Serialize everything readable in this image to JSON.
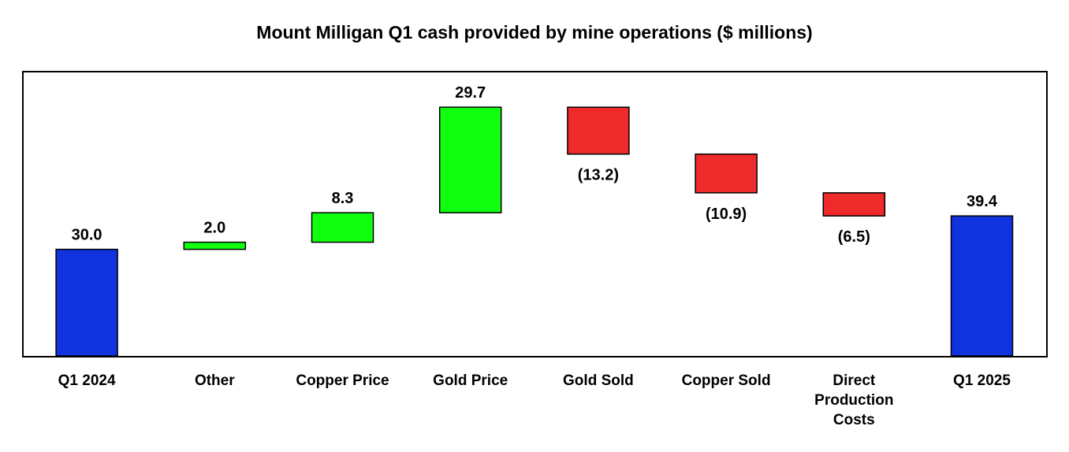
{
  "chart_data": {
    "type": "bar",
    "subtype": "waterfall",
    "title": "Mount Milligan Q1 cash provided by mine operations ($ millions)",
    "categories": [
      "Q1 2024",
      "Other",
      "Copper Price",
      "Gold Price",
      "Gold Sold",
      "Copper Sold",
      "Direct Production Costs",
      "Q1 2025"
    ],
    "category_lines": [
      [
        "Q1 2024"
      ],
      [
        "Other"
      ],
      [
        "Copper Price"
      ],
      [
        "Gold Price"
      ],
      [
        "Gold Sold"
      ],
      [
        "Copper Sold"
      ],
      [
        "Direct",
        "Production",
        "Costs"
      ],
      [
        "Q1 2025"
      ]
    ],
    "values": [
      30.0,
      2.0,
      8.3,
      29.7,
      -13.2,
      -10.9,
      -6.5,
      39.4
    ],
    "kinds": [
      "total",
      "delta",
      "delta",
      "delta",
      "delta",
      "delta",
      "delta",
      "total"
    ],
    "value_labels": [
      "30.0",
      "2.0",
      "8.3",
      "29.7",
      "(13.2)",
      "(10.9)",
      "(6.5)",
      "39.4"
    ],
    "colors": {
      "total": "#1133dd",
      "increase": "#11ff11",
      "decrease": "#ee2a2a"
    },
    "ylim": [
      0,
      80
    ],
    "grid": false,
    "legend": false
  }
}
